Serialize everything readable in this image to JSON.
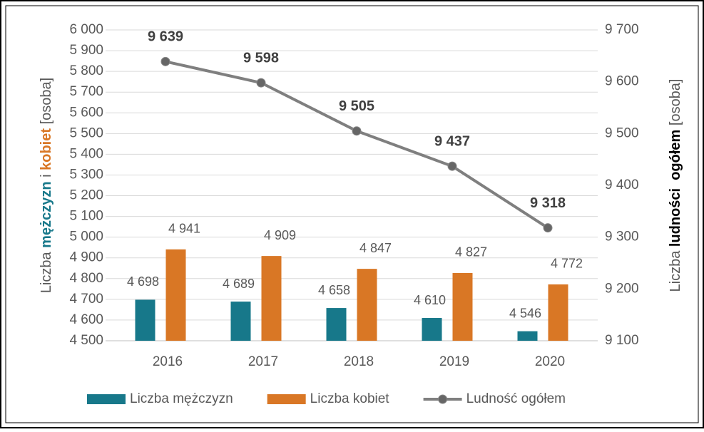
{
  "chart_data": {
    "type": "bar_line",
    "categories": [
      "2016",
      "2017",
      "2018",
      "2019",
      "2020"
    ],
    "series": [
      {
        "name": "Liczba mężczyzn",
        "type": "bar",
        "color": "#17788a",
        "values": [
          4698,
          4689,
          4658,
          4610,
          4546
        ],
        "value_labels": [
          "4 698",
          "4 689",
          "4 658",
          "4 610",
          "4 546"
        ]
      },
      {
        "name": "Liczba kobiet",
        "type": "bar",
        "color": "#d97725",
        "values": [
          4941,
          4909,
          4847,
          4827,
          4772
        ],
        "value_labels": [
          "4 941",
          "4 909",
          "4 847",
          "4 827",
          "4 772"
        ]
      },
      {
        "name": "Ludność ogółem",
        "type": "line",
        "axis": "y2",
        "color": "#7f7f7f",
        "values": [
          9639,
          9598,
          9505,
          9437,
          9318
        ],
        "value_labels": [
          "9 639",
          "9 598",
          "9 505",
          "9 437",
          "9 318"
        ]
      }
    ],
    "ylabel_parts": [
      "Liczba ",
      "mężczyzn",
      " i ",
      "kobiet",
      " [osoba]"
    ],
    "y2label_parts": [
      "Liczba ",
      "ludności  ogółem",
      " [osoba]"
    ],
    "ylim": [
      4500,
      6000
    ],
    "yticks": [
      {
        "value": 4500,
        "label": "4 500"
      },
      {
        "value": 4600,
        "label": "4 600"
      },
      {
        "value": 4700,
        "label": "4 700"
      },
      {
        "value": 4800,
        "label": "4 800"
      },
      {
        "value": 4900,
        "label": "4 900"
      },
      {
        "value": 5000,
        "label": "5 000"
      },
      {
        "value": 5100,
        "label": "5 100"
      },
      {
        "value": 5200,
        "label": "5 200"
      },
      {
        "value": 5300,
        "label": "5 300"
      },
      {
        "value": 5400,
        "label": "5 400"
      },
      {
        "value": 5500,
        "label": "5 500"
      },
      {
        "value": 5600,
        "label": "5 600"
      },
      {
        "value": 5700,
        "label": "5 700"
      },
      {
        "value": 5800,
        "label": "5 800"
      },
      {
        "value": 5900,
        "label": "5 900"
      },
      {
        "value": 6000,
        "label": "6 000"
      }
    ],
    "y2lim": [
      9100,
      9700
    ],
    "y2ticks": [
      {
        "value": 9100,
        "label": "9 100"
      },
      {
        "value": 9200,
        "label": "9 200"
      },
      {
        "value": 9300,
        "label": "9 300"
      },
      {
        "value": 9400,
        "label": "9 400"
      },
      {
        "value": 9500,
        "label": "9 500"
      },
      {
        "value": 9600,
        "label": "9 600"
      },
      {
        "value": 9700,
        "label": "9 700"
      }
    ],
    "grid": true,
    "legend": "bottom"
  }
}
